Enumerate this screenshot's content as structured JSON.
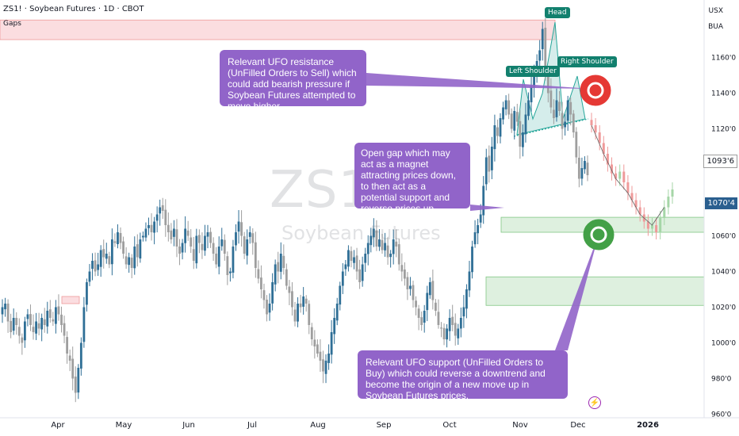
{
  "header": {
    "symbol_line": "ZS1! · Soybean Futures · 1D · CBOT",
    "indicator": "Gaps"
  },
  "axis": {
    "currency": "USX",
    "mode": "BUA",
    "price_ticks": [
      "1160'0",
      "1140'0",
      "1120'0",
      "1100'0",
      "1080'0",
      "1060'0",
      "1040'0",
      "1020'0",
      "1000'0",
      "980'0",
      "960'0"
    ],
    "price_tick_values": [
      1160,
      1140,
      1120,
      1100,
      1080,
      1060,
      1040,
      1020,
      1000,
      980,
      960
    ],
    "month_labels": [
      "Apr",
      "May",
      "Jun",
      "Jul",
      "Aug",
      "Sep",
      "Oct",
      "Nov",
      "Dec",
      "2026"
    ]
  },
  "price_badges": {
    "last_price": "1093'6",
    "level_price": "1070'4"
  },
  "watermark": {
    "ticker": "ZS1!",
    "name": "Soybean Futures"
  },
  "pattern_labels": {
    "left_shoulder": "Left Shoulder",
    "head": "Head",
    "right_shoulder": "Right Shoulder"
  },
  "notes": {
    "resistance": "Relevant UFO resistance (UnFilled Orders to Sell) which could add bearish pressure if Soybean Futures attempted to move higher.",
    "gap": "Open gap which may act as a magnet attracting prices down, to then act as a potential support and reverse prices up.",
    "support": "Relevant UFO support (UnFilled Orders to Buy) which could reverse a downtrend and become the origin of a new move up in Soybean Futures prices."
  },
  "colors": {
    "up": "#2f6f96",
    "down": "#9e9e9e",
    "forecast_up": "#a5d6a7",
    "forecast_down": "#ef9a9a",
    "note_bg": "#9164c9",
    "zone_green": "#c8e6c9",
    "zone_red": "#f8c7cc",
    "target_red": "#e53935",
    "target_green": "#43a047",
    "pattern_label": "#12806e"
  },
  "chart_data": {
    "type": "candlestick",
    "ylim": [
      958,
      1186
    ],
    "price_zones": [
      {
        "name": "gap-zone-top",
        "low": 1170,
        "high": 1181,
        "color": "red"
      },
      {
        "name": "open-gap",
        "low": 1062,
        "high": 1070.4,
        "color": "green"
      },
      {
        "name": "ufo-support",
        "low": 1021,
        "high": 1037,
        "color": "green"
      },
      {
        "name": "small-gap-apr",
        "low": 1022,
        "high": 1026,
        "color": "red"
      }
    ],
    "targets": [
      {
        "name": "resistance",
        "price": 1132,
        "color": "red"
      },
      {
        "name": "support",
        "price": 1061,
        "color": "green"
      }
    ],
    "closes": [
      1020,
      1022,
      1012,
      1006,
      1014,
      1010,
      1004,
      1000,
      1012,
      1016,
      1010,
      1006,
      1012,
      1008,
      1014,
      1010,
      1018,
      1014,
      1012,
      1020,
      1016,
      1010,
      1004,
      994,
      990,
      980,
      972,
      986,
      1000,
      1020,
      1034,
      1040,
      1046,
      1040,
      1044,
      1052,
      1048,
      1050,
      1044,
      1058,
      1056,
      1062,
      1056,
      1050,
      1044,
      1048,
      1042,
      1054,
      1048,
      1058,
      1060,
      1064,
      1066,
      1062,
      1068,
      1072,
      1076,
      1074,
      1066,
      1062,
      1058,
      1064,
      1054,
      1050,
      1056,
      1064,
      1060,
      1054,
      1046,
      1060,
      1056,
      1052,
      1060,
      1062,
      1056,
      1050,
      1044,
      1054,
      1058,
      1050,
      1038,
      1040,
      1054,
      1062,
      1068,
      1060,
      1050,
      1058,
      1062,
      1056,
      1042,
      1036,
      1030,
      1024,
      1016,
      1022,
      1034,
      1044,
      1040,
      1050,
      1042,
      1032,
      1028,
      1020,
      1012,
      1022,
      1020,
      1026,
      1022,
      1010,
      1002,
      998,
      994,
      990,
      984,
      990,
      994,
      1006,
      1014,
      1022,
      1032,
      1040,
      1044,
      1052,
      1046,
      1048,
      1040,
      1034,
      1044,
      1050,
      1056,
      1060,
      1064,
      1054,
      1058,
      1052,
      1056,
      1048,
      1050,
      1058,
      1054,
      1044,
      1040,
      1036,
      1030,
      1032,
      1024,
      1020,
      1014,
      1010,
      1018,
      1028,
      1034,
      1024,
      1018,
      1010,
      1008,
      1002,
      1008,
      1014,
      1010,
      1004,
      1008,
      1014,
      1020,
      1030,
      1040,
      1054,
      1062,
      1066,
      1072,
      1088,
      1104,
      1096,
      1110,
      1122,
      1116,
      1126,
      1132,
      1136,
      1128,
      1120,
      1130,
      1124,
      1110,
      1118,
      1128,
      1136,
      1144,
      1150,
      1158,
      1164,
      1176,
      1154,
      1140,
      1132,
      1126,
      1136,
      1130,
      1120,
      1124,
      1136,
      1128,
      1118,
      1104,
      1092,
      1098,
      1102,
      1094
    ],
    "forecast_closes": [
      1122,
      1118,
      1112,
      1106,
      1100,
      1095,
      1092,
      1096,
      1090,
      1084,
      1080,
      1076,
      1072,
      1068,
      1064,
      1066,
      1062,
      1070,
      1076,
      1082,
      1086
    ]
  }
}
